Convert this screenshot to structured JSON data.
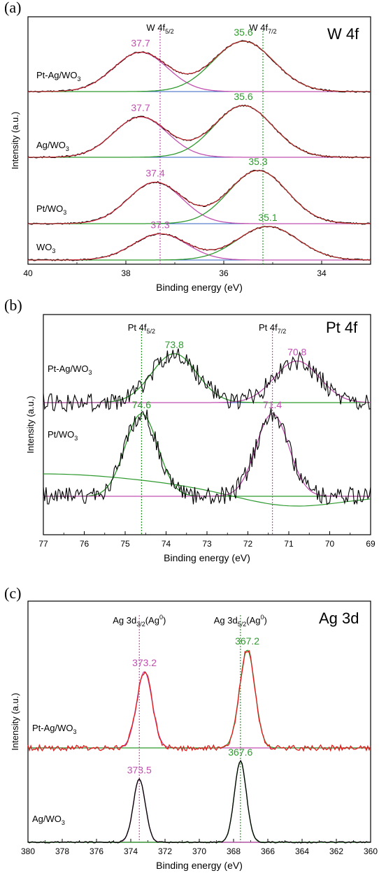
{
  "colors": {
    "raw": "#000000",
    "raw_red": "#e31a1c",
    "fit_red": "#e8333a",
    "w52": "#b040a8",
    "w72": "#2d8a2d",
    "pink": "#c050b0",
    "green": "#2e9a2e",
    "base_blue": "#3060c0"
  },
  "chart_data": [
    {
      "type": "line",
      "panel_label": "(a)",
      "corner_title": "W 4f",
      "xlabel": "Binding energy (eV)",
      "ylabel": "Intensity (a.u.)",
      "xlim": [
        40,
        33
      ],
      "x_ticks": [
        "40",
        "38",
        "36",
        "34"
      ],
      "x_tick_values": [
        40,
        38,
        36,
        34
      ],
      "reversed_x": true,
      "peak_marker_lines": [
        {
          "label_main": "W 4f",
          "label_sub": "5/2",
          "x": 37.3,
          "color": "pink"
        },
        {
          "label_main": "W 4f",
          "label_sub": "7/2",
          "x": 35.2,
          "color": "green"
        }
      ],
      "series": [
        {
          "name": "Pt-Ag/WO3",
          "label_main": "Pt-Ag/WO",
          "label_sub": "3",
          "peaks": [
            37.7,
            35.6
          ],
          "peak_labels": [
            "37.7",
            "35.6"
          ],
          "heights": [
            0.78,
            1.0
          ],
          "widths": [
            0.55,
            0.62
          ]
        },
        {
          "name": "Ag/WO3",
          "label_main": "Ag/WO",
          "label_sub": "3",
          "peaks": [
            37.7,
            35.6
          ],
          "peak_labels": [
            "37.7",
            "35.6"
          ],
          "heights": [
            0.78,
            1.0
          ],
          "widths": [
            0.55,
            0.6
          ]
        },
        {
          "name": "Pt/WO3",
          "label_main": "Pt/WO",
          "label_sub": "3",
          "peaks": [
            37.4,
            35.3
          ],
          "peak_labels": [
            "37.4",
            "35.3"
          ],
          "heights": [
            0.78,
            1.0
          ],
          "widths": [
            0.55,
            0.6
          ]
        },
        {
          "name": "WO3",
          "label_main": "WO",
          "label_sub": "3",
          "peaks": [
            37.3,
            35.1
          ],
          "peak_labels": [
            "37.3",
            "35.1"
          ],
          "heights": [
            0.78,
            1.0
          ],
          "widths": [
            0.55,
            0.62
          ]
        }
      ]
    },
    {
      "type": "line",
      "panel_label": "(b)",
      "corner_title": "Pt 4f",
      "xlabel": "Binding energy (eV)",
      "ylabel": "Intensity (a.u.)",
      "xlim": [
        77,
        69
      ],
      "x_ticks": [
        "77",
        "76",
        "75",
        "74",
        "73",
        "72",
        "71",
        "70",
        "69"
      ],
      "x_tick_values": [
        77,
        76,
        75,
        74,
        73,
        72,
        71,
        70,
        69
      ],
      "reversed_x": true,
      "peak_marker_lines": [
        {
          "label_main": "Pt 4f",
          "label_sub": "5/2",
          "x": 74.6,
          "color": "green"
        },
        {
          "label_main": "Pt 4f",
          "label_sub": "7/2",
          "x": 71.4,
          "color": "pink"
        }
      ],
      "series": [
        {
          "name": "Pt-Ag/WO3",
          "label_main": "Pt-Ag/WO",
          "label_sub": "3",
          "peaks": [
            73.8,
            70.8
          ],
          "peak_labels": [
            "73.8",
            "70.8"
          ],
          "heights": [
            1.0,
            0.85
          ],
          "widths": [
            0.55,
            0.55
          ]
        },
        {
          "name": "Pt/WO3",
          "label_main": "Pt/WO",
          "label_sub": "3",
          "peaks": [
            74.6,
            71.4
          ],
          "peak_labels": [
            "74.6",
            "71.4"
          ],
          "heights": [
            1.0,
            1.0
          ],
          "widths": [
            0.4,
            0.4
          ]
        }
      ]
    },
    {
      "type": "line",
      "panel_label": "(c)",
      "corner_title": "Ag 3d",
      "xlabel": "Binding energy (eV)",
      "ylabel": "Intensity (a.u.)",
      "xlim": [
        380,
        360
      ],
      "x_ticks": [
        "380",
        "378",
        "376",
        "374",
        "372",
        "370",
        "368",
        "366",
        "364",
        "362",
        "360"
      ],
      "x_tick_values": [
        380,
        378,
        376,
        374,
        372,
        370,
        368,
        366,
        364,
        362,
        360
      ],
      "reversed_x": true,
      "peak_marker_lines": [
        {
          "label_main": "Ag 3d",
          "label_sub": "3/2",
          "label_tail": "(Ag",
          "label_sup": "0",
          "label_end": ")",
          "x": 373.5,
          "color": "pink"
        },
        {
          "label_main": "Ag 3d",
          "label_sub": "5/2",
          "label_tail": "(Ag",
          "label_sup": "0",
          "label_end": ")",
          "x": 367.6,
          "color": "green"
        }
      ],
      "series": [
        {
          "name": "Pt-Ag/WO3",
          "label_main": "Pt-Ag/WO",
          "label_sub": "3",
          "peaks": [
            373.2,
            367.2
          ],
          "peak_labels": [
            "373.2",
            "367.2"
          ],
          "heights": [
            0.78,
            1.0
          ],
          "widths": [
            0.45,
            0.45
          ]
        },
        {
          "name": "Ag/WO3",
          "label_main": "Ag/WO",
          "label_sub": "3",
          "peaks": [
            373.5,
            367.6
          ],
          "peak_labels": [
            "373.5",
            "367.6"
          ],
          "heights": [
            0.78,
            1.0
          ],
          "widths": [
            0.35,
            0.35
          ]
        }
      ]
    }
  ]
}
